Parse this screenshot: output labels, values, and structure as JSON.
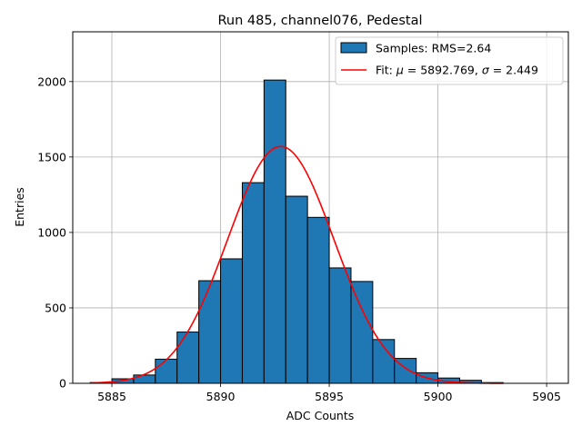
{
  "chart_data": {
    "type": "bar",
    "title": "Run 485, channel076, Pedestal",
    "xlabel": "ADC Counts",
    "ylabel": "Entries",
    "xlim": [
      5883.2,
      5906.0
    ],
    "ylim": [
      0,
      2330
    ],
    "x_ticks": [
      5885,
      5890,
      5895,
      5900,
      5905
    ],
    "y_ticks": [
      0,
      500,
      1000,
      1500,
      2000
    ],
    "grid": true,
    "legend_position": "top-right",
    "bar_color": "#1f77b4",
    "bar_edge_color": "#000000",
    "fit_color": "#ff0000",
    "bins": [
      {
        "x0": 5884,
        "x1": 5885,
        "count": 5
      },
      {
        "x0": 5885,
        "x1": 5886,
        "count": 30
      },
      {
        "x0": 5886,
        "x1": 5887,
        "count": 55
      },
      {
        "x0": 5887,
        "x1": 5888,
        "count": 160
      },
      {
        "x0": 5888,
        "x1": 5889,
        "count": 340
      },
      {
        "x0": 5889,
        "x1": 5890,
        "count": 680
      },
      {
        "x0": 5890,
        "x1": 5891,
        "count": 825
      },
      {
        "x0": 5891,
        "x1": 5892,
        "count": 1330
      },
      {
        "x0": 5892,
        "x1": 5893,
        "count": 2010
      },
      {
        "x0": 5893,
        "x1": 5894,
        "count": 1240
      },
      {
        "x0": 5894,
        "x1": 5895,
        "count": 1100
      },
      {
        "x0": 5895,
        "x1": 5896,
        "count": 765
      },
      {
        "x0": 5896,
        "x1": 5897,
        "count": 675
      },
      {
        "x0": 5897,
        "x1": 5898,
        "count": 290
      },
      {
        "x0": 5898,
        "x1": 5899,
        "count": 165
      },
      {
        "x0": 5899,
        "x1": 5900,
        "count": 70
      },
      {
        "x0": 5900,
        "x1": 5901,
        "count": 35
      },
      {
        "x0": 5901,
        "x1": 5902,
        "count": 20
      },
      {
        "x0": 5902,
        "x1": 5903,
        "count": 5
      }
    ],
    "fit": {
      "mu": 5892.769,
      "sigma": 2.449,
      "amplitude": 1570,
      "x_range": [
        5884,
        5903
      ]
    },
    "legend": [
      {
        "kind": "patch",
        "label": "Samples: RMS=2.64"
      },
      {
        "kind": "line",
        "label_prefix": "Fit: ",
        "mu_symbol": "μ",
        "mu_text": " = 5892.769, ",
        "sigma_symbol": "σ",
        "sigma_text": " = 2.449"
      }
    ]
  }
}
